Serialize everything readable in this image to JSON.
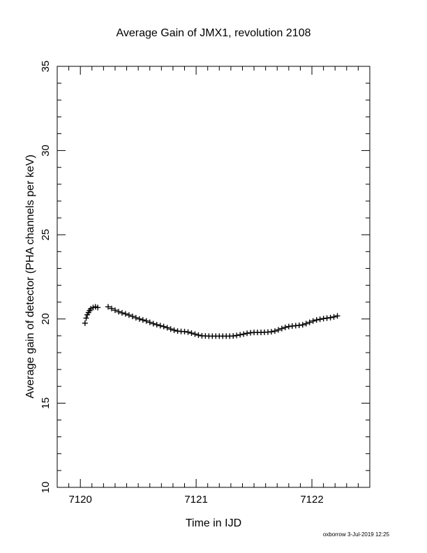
{
  "chart_data": {
    "type": "scatter",
    "title": "Average Gain of JMX1, revolution 2108",
    "xlabel": "Time in IJD",
    "ylabel": "Average gain of detector (PHA channels per keV)",
    "xlim": [
      7119.8,
      7122.5
    ],
    "ylim": [
      10,
      35
    ],
    "x_ticks": [
      7120,
      7121,
      7122
    ],
    "x_tick_labels": [
      "7120",
      "7121",
      "7122"
    ],
    "y_ticks": [
      10,
      15,
      20,
      25,
      30,
      35
    ],
    "y_tick_labels": [
      "10",
      "15",
      "20",
      "25",
      "30",
      "35"
    ],
    "marker": "+",
    "grid": false,
    "series": [
      {
        "points": [
          [
            7120.04,
            19.75
          ],
          [
            7120.05,
            20.05
          ],
          [
            7120.06,
            20.25
          ],
          [
            7120.07,
            20.38
          ],
          [
            7120.08,
            20.5
          ],
          [
            7120.09,
            20.6
          ],
          [
            7120.11,
            20.68
          ],
          [
            7120.13,
            20.72
          ],
          [
            7120.15,
            20.68
          ],
          [
            7120.24,
            20.72
          ],
          [
            7120.27,
            20.62
          ],
          [
            7120.3,
            20.52
          ],
          [
            7120.33,
            20.43
          ],
          [
            7120.36,
            20.36
          ],
          [
            7120.39,
            20.3
          ],
          [
            7120.42,
            20.23
          ],
          [
            7120.45,
            20.15
          ],
          [
            7120.48,
            20.07
          ],
          [
            7120.51,
            20.0
          ],
          [
            7120.54,
            19.94
          ],
          [
            7120.57,
            19.88
          ],
          [
            7120.6,
            19.8
          ],
          [
            7120.63,
            19.72
          ],
          [
            7120.66,
            19.66
          ],
          [
            7120.69,
            19.6
          ],
          [
            7120.72,
            19.55
          ],
          [
            7120.75,
            19.48
          ],
          [
            7120.78,
            19.4
          ],
          [
            7120.81,
            19.33
          ],
          [
            7120.84,
            19.28
          ],
          [
            7120.87,
            19.26
          ],
          [
            7120.9,
            19.25
          ],
          [
            7120.93,
            19.22
          ],
          [
            7120.96,
            19.16
          ],
          [
            7120.99,
            19.1
          ],
          [
            7121.02,
            19.04
          ],
          [
            7121.05,
            19.0
          ],
          [
            7121.08,
            18.99
          ],
          [
            7121.11,
            18.98
          ],
          [
            7121.14,
            18.98
          ],
          [
            7121.17,
            18.98
          ],
          [
            7121.2,
            18.98
          ],
          [
            7121.23,
            18.98
          ],
          [
            7121.26,
            18.98
          ],
          [
            7121.29,
            18.98
          ],
          [
            7121.32,
            18.99
          ],
          [
            7121.35,
            19.02
          ],
          [
            7121.38,
            19.06
          ],
          [
            7121.41,
            19.1
          ],
          [
            7121.44,
            19.15
          ],
          [
            7121.47,
            19.18
          ],
          [
            7121.5,
            19.2
          ],
          [
            7121.53,
            19.2
          ],
          [
            7121.56,
            19.2
          ],
          [
            7121.59,
            19.21
          ],
          [
            7121.62,
            19.22
          ],
          [
            7121.65,
            19.24
          ],
          [
            7121.68,
            19.28
          ],
          [
            7121.71,
            19.35
          ],
          [
            7121.74,
            19.43
          ],
          [
            7121.77,
            19.5
          ],
          [
            7121.8,
            19.55
          ],
          [
            7121.83,
            19.58
          ],
          [
            7121.86,
            19.6
          ],
          [
            7121.89,
            19.62
          ],
          [
            7121.92,
            19.65
          ],
          [
            7121.95,
            19.72
          ],
          [
            7121.98,
            19.8
          ],
          [
            7122.01,
            19.88
          ],
          [
            7122.04,
            19.94
          ],
          [
            7122.07,
            19.98
          ],
          [
            7122.1,
            20.02
          ],
          [
            7122.13,
            20.05
          ],
          [
            7122.16,
            20.08
          ],
          [
            7122.19,
            20.12
          ],
          [
            7122.22,
            20.18
          ]
        ]
      }
    ]
  },
  "footer_stamp": "oxborrow  3-Jul-2019 12:25"
}
